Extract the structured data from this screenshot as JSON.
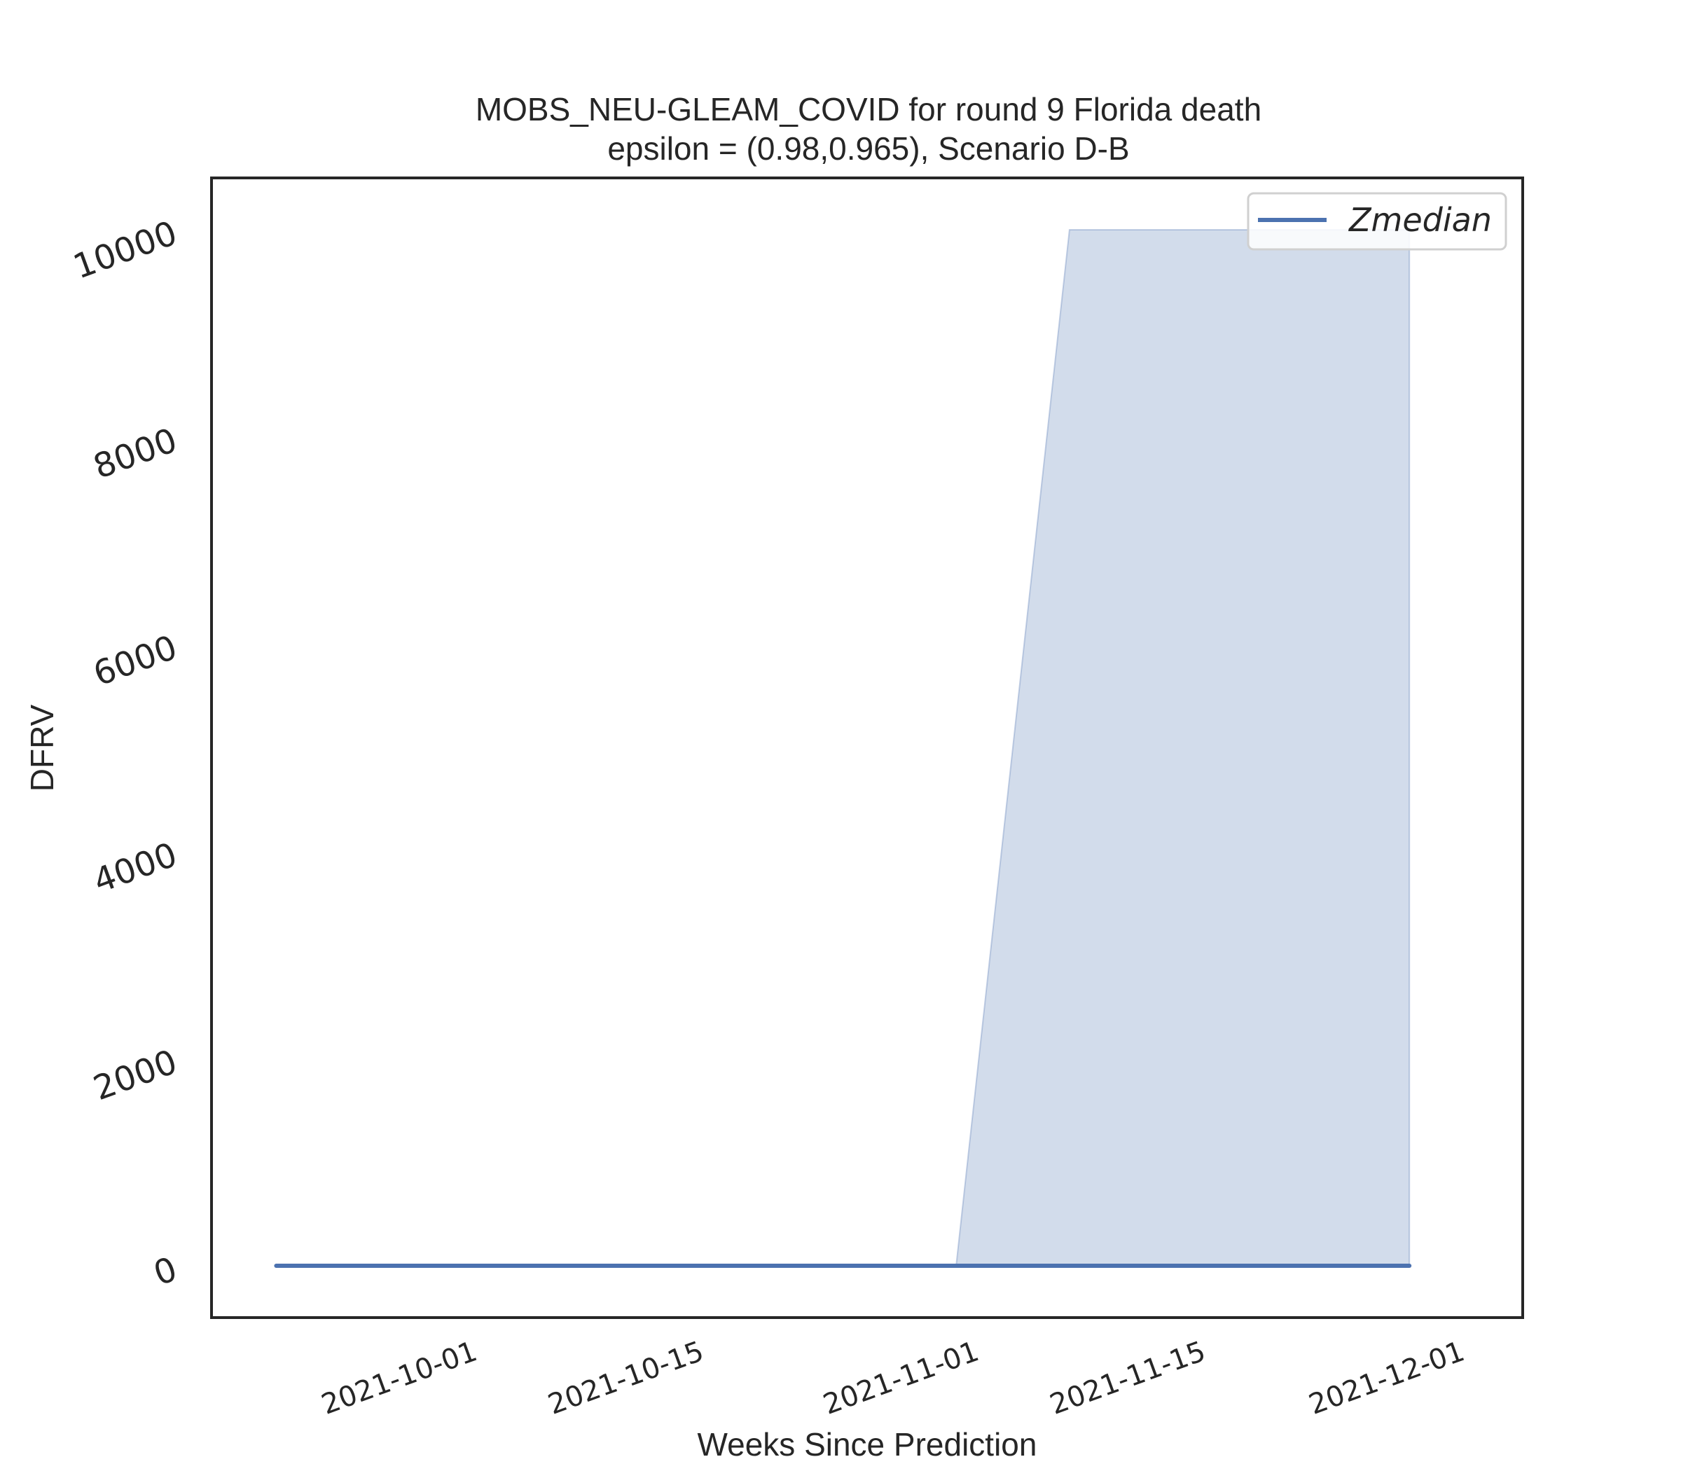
{
  "chart_data": {
    "type": "line",
    "title": "MOBS_NEU-GLEAM_COVID for round 9 Florida  death",
    "subtitle": "epsilon = (0.98,0.965), Scenario D-B",
    "xlabel": "Weeks Since Prediction",
    "ylabel": "DFRV",
    "x_ticks": [
      "2021-10-01",
      "2021-10-15",
      "2021-11-01",
      "2021-11-15",
      "2021-12-01"
    ],
    "y_ticks": [
      0,
      2000,
      4000,
      6000,
      8000,
      10000
    ],
    "ylim": [
      -500,
      10500
    ],
    "xlim": [
      "2021-09-15",
      "2021-12-05"
    ],
    "legend": {
      "position": "top-right",
      "entries": [
        "Zmedian"
      ]
    },
    "series": [
      {
        "name": "Zmedian",
        "color": "#4c72b0",
        "x": [
          "2021-09-19",
          "2021-09-26",
          "2021-10-03",
          "2021-10-10",
          "2021-10-17",
          "2021-10-24",
          "2021-10-31",
          "2021-11-07",
          "2021-11-14",
          "2021-11-21",
          "2021-11-28"
        ],
        "values": [
          0,
          0,
          0,
          0,
          0,
          0,
          0,
          0,
          0,
          0,
          0
        ]
      }
    ],
    "band": {
      "color": "#4c72b0",
      "x": [
        "2021-09-19",
        "2021-09-26",
        "2021-10-03",
        "2021-10-10",
        "2021-10-17",
        "2021-10-24",
        "2021-10-31",
        "2021-11-07",
        "2021-11-14",
        "2021-11-21",
        "2021-11-28"
      ],
      "lower": [
        0,
        0,
        0,
        0,
        0,
        0,
        0,
        0,
        0,
        0,
        0
      ],
      "upper": [
        0,
        0,
        0,
        0,
        0,
        0,
        0,
        10000,
        10000,
        10000,
        10000
      ]
    },
    "grid": false
  }
}
